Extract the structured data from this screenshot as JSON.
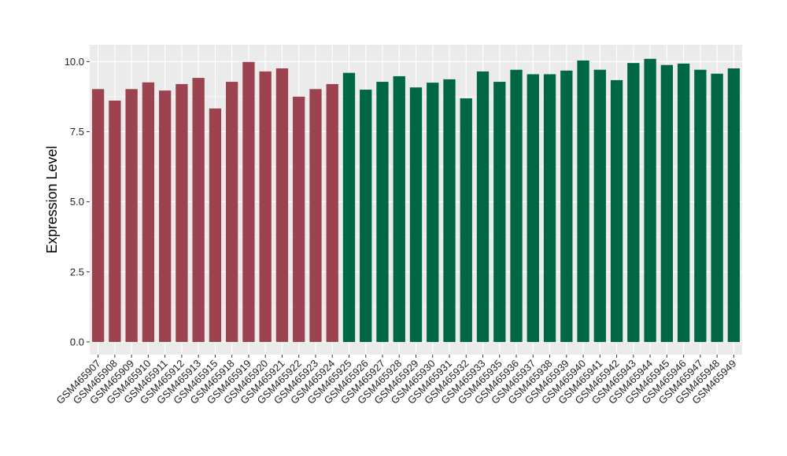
{
  "chart_data": {
    "type": "bar",
    "ylabel": "Expression Level",
    "xlabel": "",
    "ylim": [
      -0.45,
      10.6
    ],
    "yticks": [
      0.0,
      2.5,
      5.0,
      7.5,
      10.0
    ],
    "ytick_labels": [
      "0.0",
      "2.5",
      "5.0",
      "7.5",
      "10.0"
    ],
    "grid": true,
    "categories": [
      "GSM465907",
      "GSM465908",
      "GSM465909",
      "GSM465910",
      "GSM465911",
      "GSM465912",
      "GSM465913",
      "GSM465915",
      "GSM465918",
      "GSM465919",
      "GSM465920",
      "GSM465921",
      "GSM465922",
      "GSM465923",
      "GSM465924",
      "GSM465925",
      "GSM465926",
      "GSM465927",
      "GSM465928",
      "GSM465929",
      "GSM465930",
      "GSM465931",
      "GSM465932",
      "GSM465933",
      "GSM465935",
      "GSM465936",
      "GSM465937",
      "GSM465938",
      "GSM465939",
      "GSM465940",
      "GSM465941",
      "GSM465942",
      "GSM465943",
      "GSM465944",
      "GSM465945",
      "GSM465946",
      "GSM465947",
      "GSM465948",
      "GSM465949"
    ],
    "values": [
      9.02,
      8.61,
      9.02,
      9.26,
      8.97,
      9.2,
      9.42,
      8.33,
      9.28,
      9.99,
      9.65,
      9.76,
      8.75,
      9.02,
      9.2,
      9.6,
      9.0,
      9.28,
      9.48,
      9.08,
      9.25,
      9.37,
      8.69,
      9.65,
      9.28,
      9.71,
      9.55,
      9.55,
      9.68,
      10.04,
      9.71,
      9.34,
      9.95,
      10.1,
      9.88,
      9.93,
      9.71,
      9.57,
      9.76
    ],
    "groups": [
      0,
      0,
      0,
      0,
      0,
      0,
      0,
      0,
      0,
      0,
      0,
      0,
      0,
      0,
      0,
      1,
      1,
      1,
      1,
      1,
      1,
      1,
      1,
      1,
      1,
      1,
      1,
      1,
      1,
      1,
      1,
      1,
      1,
      1,
      1,
      1,
      1,
      1,
      1
    ],
    "colors": {
      "group0": "#9b4450",
      "group1": "#006743",
      "panel": "#ebebeb",
      "grid": "#ffffff"
    }
  }
}
